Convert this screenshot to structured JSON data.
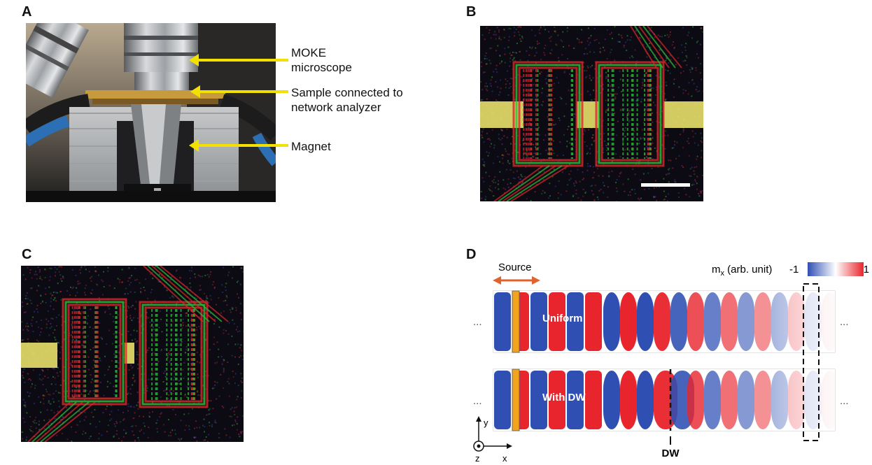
{
  "panels": {
    "a": {
      "label": "A",
      "annotations": [
        "MOKE microscope",
        "Sample connected to network analyzer",
        "Magnet"
      ]
    },
    "b": {
      "label": "B"
    },
    "c": {
      "label": "C"
    },
    "d": {
      "label": "D",
      "source_label": "Source",
      "colorbar_label": "m",
      "colorbar_sub": "x",
      "colorbar_unit": " (arb. unit)",
      "colorbar_min": "-1",
      "colorbar_max": "1",
      "row1_label": "Uniform",
      "row2_label": "With DW",
      "dw_label": "DW",
      "axis_y": "y",
      "axis_x": "x",
      "axis_z": "z",
      "ellipsis": "..."
    }
  },
  "colors": {
    "annotation_arrow": "#f2e100",
    "wave_red": "#e8252c",
    "wave_blue": "#2f4fb3",
    "source_arrow": "#e0622c"
  }
}
